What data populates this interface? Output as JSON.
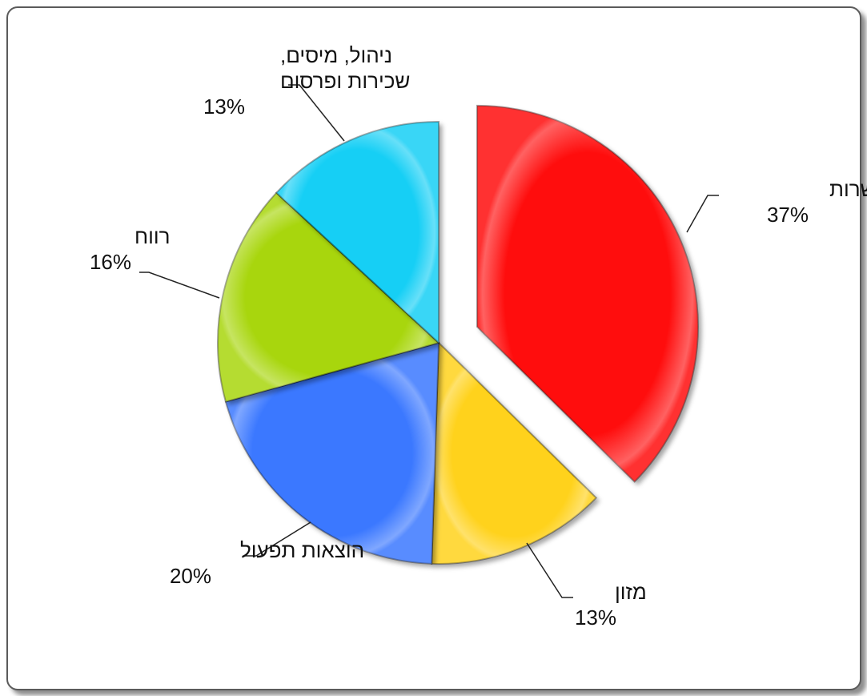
{
  "chart_data": {
    "type": "pie",
    "exploded": "תמורה למשרות",
    "slices": [
      {
        "label": "תמורה למשרות",
        "value": 37,
        "display": "37%",
        "color": "#ff1010"
      },
      {
        "label": "מזון",
        "value": 13,
        "display": "13%",
        "color": "#ffd21a"
      },
      {
        "label": "הוצאות תפעול",
        "value": 20,
        "display": "20%",
        "color": "#3a78ff"
      },
      {
        "label": "רווח",
        "value": 16,
        "display": "16%",
        "color": "#a8d610"
      },
      {
        "label": "ניהול, מיסים, שכירות ופרסום",
        "label_lines": [
          "ניהול, מיסים,",
          "שכירות ופרסום"
        ],
        "value": 13,
        "display": "13%",
        "color": "#12cff5"
      }
    ]
  }
}
